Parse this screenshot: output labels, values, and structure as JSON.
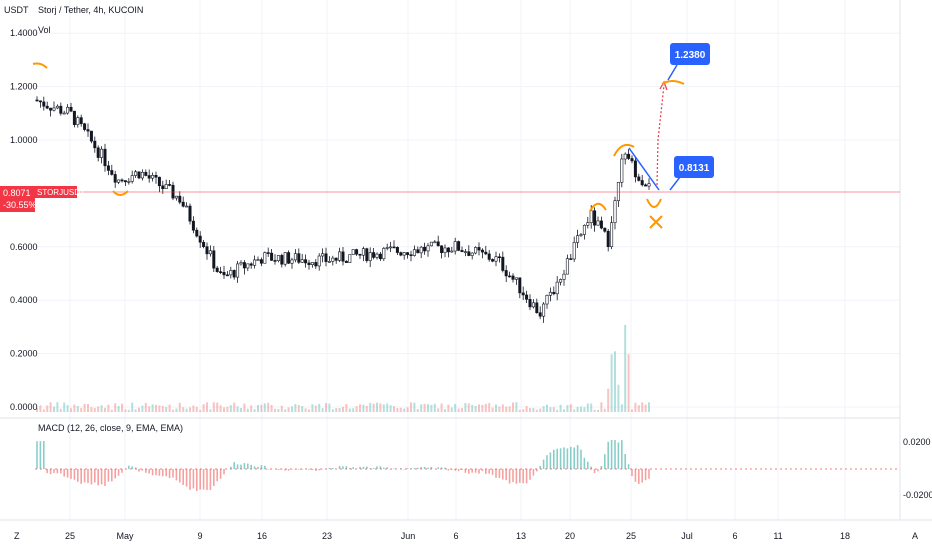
{
  "header": {
    "currency": "USDT",
    "title": "Storj / Tether, 4h, KUCOIN",
    "volume_label": "Vol"
  },
  "price_axis": {
    "ticks": [
      "1.4000",
      "1.2000",
      "1.0000",
      "0.8071",
      "0.6000",
      "0.4000",
      "0.2000",
      "0.0000"
    ],
    "tick_values": [
      1.4,
      1.2,
      1.0,
      0.6,
      0.4,
      0.2,
      0.0
    ],
    "current_price": "0.8071",
    "current_change": "-30.55%",
    "current_tag": "STORJUSDT"
  },
  "macd": {
    "label": "MACD (12, 26, close, 9, EMA, EMA)",
    "ticks": [
      "0.0200",
      "-0.0200"
    ],
    "tick_values": [
      0.02,
      -0.02
    ]
  },
  "time_axis": {
    "labels": [
      "25",
      "May",
      "9",
      "16",
      "23",
      "Jun",
      "6",
      "13",
      "20",
      "25",
      "Jul",
      "6",
      "11",
      "18"
    ],
    "left_button": "Z",
    "right_button": "A"
  },
  "annotations": {
    "target_label": "1.2380",
    "entry_label": "0.8131"
  },
  "colors": {
    "up": "#26a69a",
    "down": "#ef5350",
    "candle_body": "#131722",
    "annotation": "#ff9800",
    "label_bg": "#2962ff",
    "price_line": "#f23645",
    "trendline": "#2962ff"
  },
  "chart_data": {
    "type": "candlestick",
    "title": "Storj / Tether, 4h, KUCOIN",
    "ylabel": "USDT",
    "ylim": [
      0,
      1.45
    ],
    "approx_closes_by_date": [
      {
        "date": "Apr 22",
        "close": 1.15
      },
      {
        "date": "Apr 25",
        "close": 1.1
      },
      {
        "date": "Apr 29",
        "close": 0.95
      },
      {
        "date": "May 2",
        "close": 0.85
      },
      {
        "date": "May 5",
        "close": 0.88
      },
      {
        "date": "May 8",
        "close": 0.78
      },
      {
        "date": "May 11",
        "close": 0.48
      },
      {
        "date": "May 13",
        "close": 0.52
      },
      {
        "date": "May 16",
        "close": 0.56
      },
      {
        "date": "May 23",
        "close": 0.55
      },
      {
        "date": "May 30",
        "close": 0.58
      },
      {
        "date": "Jun 6",
        "close": 0.6
      },
      {
        "date": "Jun 10",
        "close": 0.55
      },
      {
        "date": "Jun 14",
        "close": 0.35
      },
      {
        "date": "Jun 17",
        "close": 0.52
      },
      {
        "date": "Jun 20",
        "close": 0.72
      },
      {
        "date": "Jun 22",
        "close": 0.62
      },
      {
        "date": "Jun 23",
        "close": 0.95
      },
      {
        "date": "Jun 26",
        "close": 0.8071
      }
    ],
    "last_price": 0.8071,
    "projection_target": 1.238,
    "projection_entry": 0.8131
  }
}
